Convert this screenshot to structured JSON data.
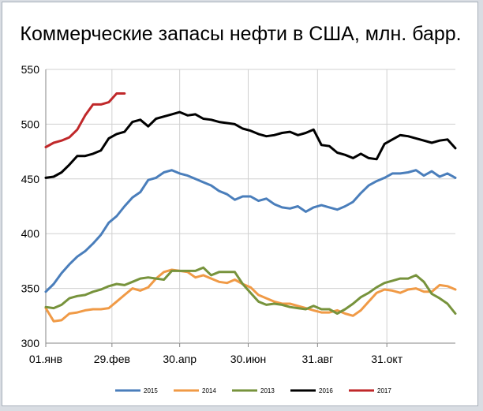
{
  "chart_data": {
    "type": "line",
    "title": "Коммерческие запасы нефти в США, млн. барр.",
    "xlabel": "",
    "ylabel": "",
    "ylim": [
      300,
      550
    ],
    "yticks": [
      "300",
      "350",
      "400",
      "450",
      "500",
      "550"
    ],
    "x_tick_labels": [
      "01.янв",
      "29.фев",
      "30.апр",
      "30.июн",
      "31.авг",
      "31.окт"
    ],
    "x_tick_weeks": [
      0,
      8.4,
      17,
      25.7,
      34.5,
      43.3
    ],
    "x_weeks_max": 52,
    "grid": true,
    "legend_position": "bottom",
    "series": [
      {
        "name": "2015",
        "color": "#4a7ebb",
        "values": [
          347,
          354,
          364,
          372,
          379,
          384,
          391,
          399,
          410,
          416,
          425,
          433,
          438,
          449,
          451,
          456,
          458,
          455,
          453,
          450,
          447,
          444,
          439,
          436,
          431,
          434,
          434,
          430,
          432,
          427,
          424,
          423,
          425,
          420,
          424,
          426,
          424,
          422,
          425,
          429,
          437,
          444,
          448,
          451,
          455,
          455,
          456,
          458,
          453,
          457,
          452,
          455,
          451
        ]
      },
      {
        "name": "2014",
        "color": "#f09a46",
        "values": [
          332,
          320,
          321,
          327,
          328,
          330,
          331,
          331,
          332,
          338,
          344,
          350,
          348,
          351,
          359,
          365,
          367,
          366,
          365,
          360,
          362,
          359,
          356,
          355,
          358,
          354,
          351,
          344,
          341,
          338,
          336,
          336,
          334,
          332,
          330,
          328,
          328,
          330,
          327,
          325,
          330,
          338,
          346,
          349,
          348,
          346,
          349,
          350,
          347,
          347,
          353,
          352,
          349
        ]
      },
      {
        "name": "2013",
        "color": "#77933c",
        "values": [
          333,
          332,
          335,
          341,
          343,
          344,
          347,
          349,
          352,
          354,
          353,
          356,
          359,
          360,
          359,
          358,
          366,
          366,
          366,
          366,
          369,
          362,
          365,
          365,
          365,
          354,
          346,
          338,
          335,
          336,
          335,
          333,
          332,
          331,
          334,
          331,
          331,
          327,
          331,
          336,
          342,
          346,
          351,
          355,
          357,
          359,
          359,
          362,
          356,
          345,
          341,
          336,
          327
        ]
      },
      {
        "name": "2016",
        "color": "#000000",
        "values": [
          451,
          452,
          456,
          463,
          471,
          471,
          473,
          476,
          487,
          491,
          493,
          502,
          504,
          498,
          505,
          507,
          509,
          511,
          508,
          509,
          505,
          504,
          502,
          501,
          500,
          496,
          494,
          491,
          489,
          490,
          492,
          493,
          490,
          492,
          495,
          481,
          480,
          474,
          472,
          469,
          473,
          469,
          468,
          482,
          486,
          490,
          489,
          487,
          485,
          483,
          485,
          486,
          478
        ]
      },
      {
        "name": "2017",
        "color": "#c0282a",
        "values": [
          479,
          483,
          485,
          488,
          495,
          508,
          518,
          518,
          520,
          528,
          528
        ]
      }
    ]
  }
}
